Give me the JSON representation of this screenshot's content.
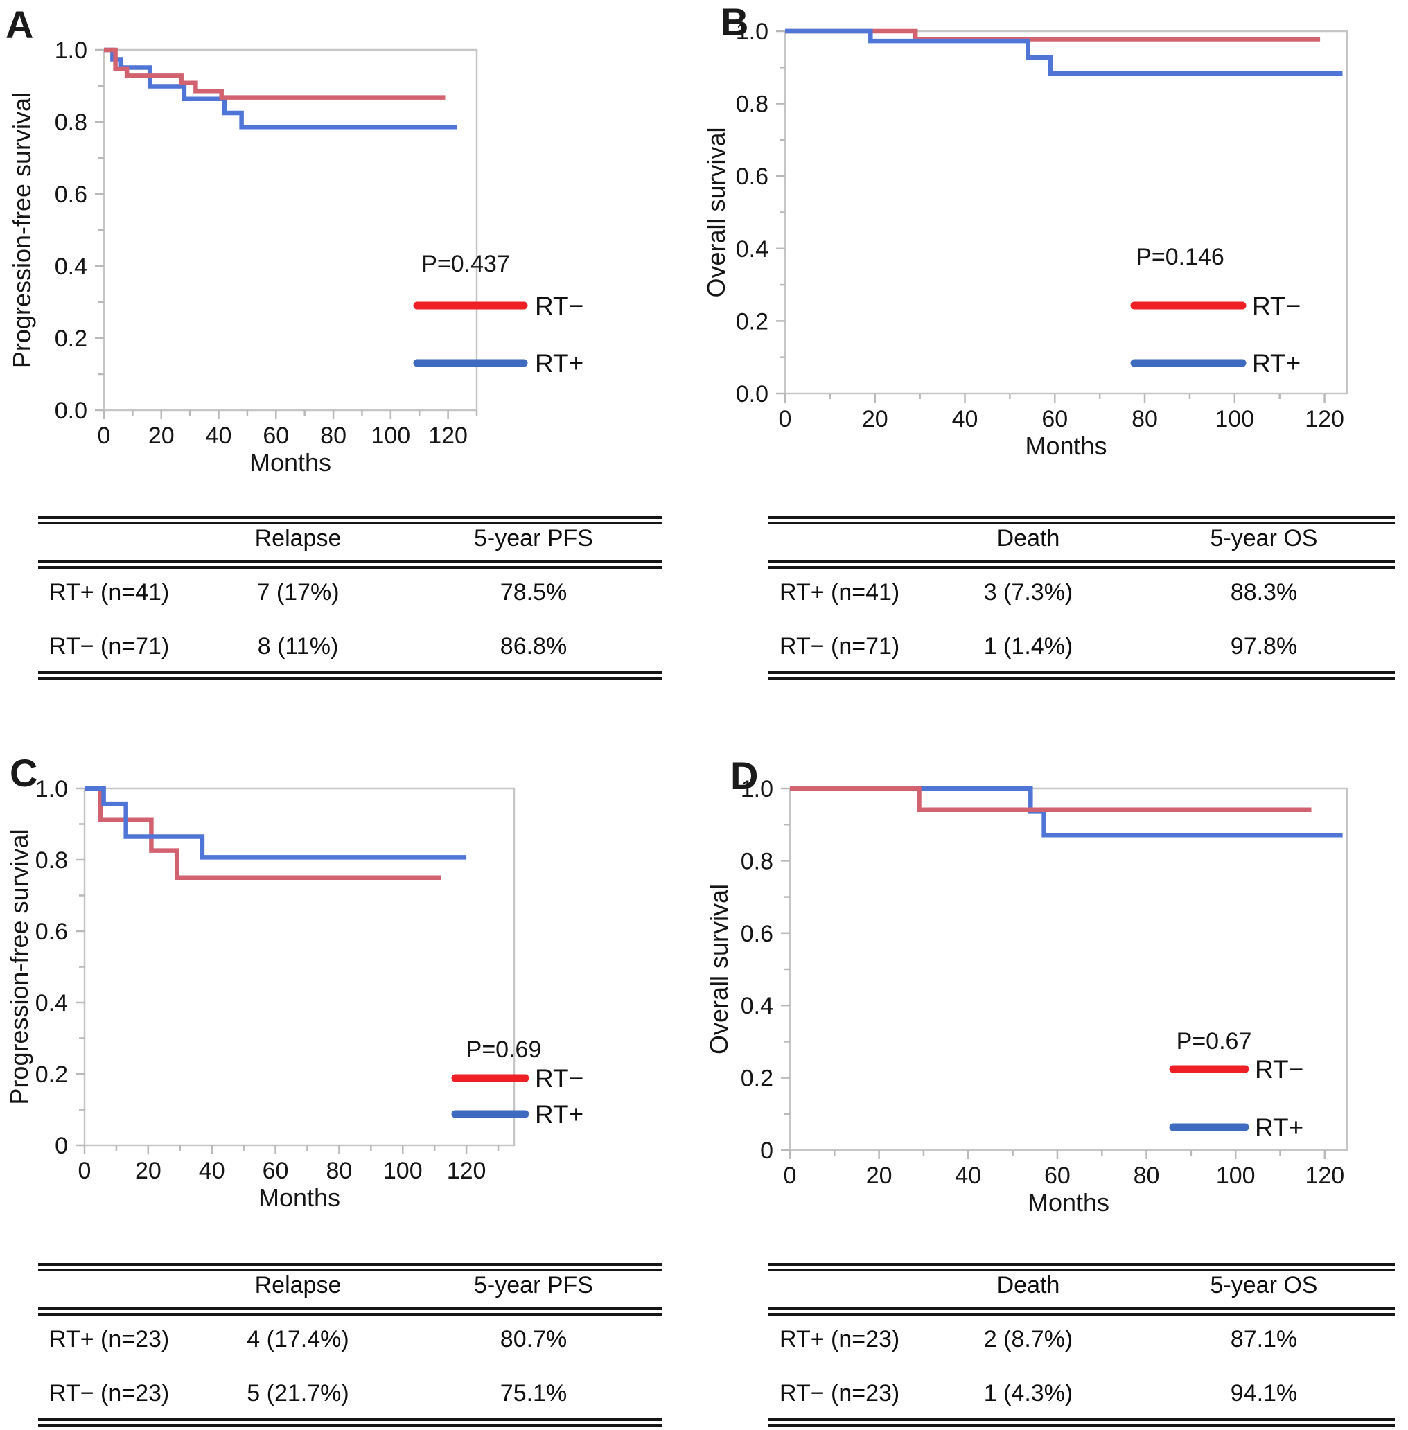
{
  "colors": {
    "curve_red": "#d2626f",
    "curve_blue": "#4f75d6",
    "legend_red": "#ee2026",
    "legend_blue": "#3e6ac0",
    "frame_gray": "#c6c6c6",
    "tick_gray": "#b9b9b9",
    "text_dark": "#151515"
  },
  "panels": [
    {
      "label": "A",
      "table": {
        "headers": [
          "",
          "Relapse",
          "5-year PFS"
        ],
        "rows": [
          [
            "RT+ (n=41)",
            "7 (17%)",
            "78.5%"
          ],
          [
            "RT− (n=71)",
            "8 (11%)",
            "86.8%"
          ]
        ]
      }
    },
    {
      "label": "B",
      "table": {
        "headers": [
          "",
          "Death",
          "5-year OS"
        ],
        "rows": [
          [
            "RT+ (n=41)",
            "3 (7.3%)",
            "88.3%"
          ],
          [
            "RT− (n=71)",
            "1 (1.4%)",
            "97.8%"
          ]
        ]
      }
    },
    {
      "label": "C",
      "table": {
        "headers": [
          "",
          "Relapse",
          "5-year PFS"
        ],
        "rows": [
          [
            "RT+ (n=23)",
            "4 (17.4%)",
            "80.7%"
          ],
          [
            "RT− (n=23)",
            "5 (21.7%)",
            "75.1%"
          ]
        ]
      }
    },
    {
      "label": "D",
      "table": {
        "headers": [
          "",
          "Death",
          "5-year OS"
        ],
        "rows": [
          [
            "RT+ (n=23)",
            "2 (8.7%)",
            "87.1%"
          ],
          [
            "RT− (n=23)",
            "1 (4.3%)",
            "94.1%"
          ]
        ]
      }
    }
  ],
  "chart_data": [
    {
      "id": "A",
      "type": "line",
      "subtype": "kaplan_meier_step",
      "xlabel": "Months",
      "ylabel": "Progression-free survival",
      "xlim": [
        0,
        130
      ],
      "ylim": [
        0,
        1
      ],
      "x_ticks": [
        0,
        20,
        40,
        60,
        80,
        100,
        120
      ],
      "y_tick_labels": [
        "1.0",
        "0.8",
        "0.6",
        "0.4",
        "0.2",
        "0.0"
      ],
      "annotation": "P=0.437",
      "legend": [
        {
          "label": "RT−",
          "color": "#ee2026"
        },
        {
          "label": "RT+",
          "color": "#3e6ac0"
        }
      ],
      "series": [
        {
          "name": "RT+",
          "color": "#4f75d6",
          "points": [
            [
              0,
              1
            ],
            [
              3,
              1
            ],
            [
              3,
              0.974
            ],
            [
              6,
              0.974
            ],
            [
              6,
              0.951
            ],
            [
              16,
              0.951
            ],
            [
              16,
              0.899
            ],
            [
              28,
              0.899
            ],
            [
              28,
              0.864
            ],
            [
              42,
              0.864
            ],
            [
              42,
              0.825
            ],
            [
              48,
              0.825
            ],
            [
              48,
              0.786
            ],
            [
              123,
              0.786
            ]
          ]
        },
        {
          "name": "RT−",
          "color": "#d2626f",
          "points": [
            [
              0,
              1
            ],
            [
              4,
              1
            ],
            [
              4,
              0.948
            ],
            [
              8,
              0.948
            ],
            [
              8,
              0.928
            ],
            [
              27,
              0.928
            ],
            [
              27,
              0.908
            ],
            [
              32,
              0.908
            ],
            [
              32,
              0.886
            ],
            [
              41,
              0.886
            ],
            [
              41,
              0.868
            ],
            [
              119,
              0.868
            ]
          ]
        }
      ]
    },
    {
      "id": "B",
      "type": "line",
      "subtype": "kaplan_meier_step",
      "xlabel": "Months",
      "ylabel": "Overall survival",
      "xlim": [
        0,
        125
      ],
      "ylim": [
        0,
        1
      ],
      "x_ticks": [
        0,
        20,
        40,
        60,
        80,
        100,
        120
      ],
      "y_tick_labels": [
        "1.0",
        "0.8",
        "0.6",
        "0.4",
        "0.2",
        "0.0"
      ],
      "annotation": "P=0.146",
      "legend": [
        {
          "label": "RT−",
          "color": "#ee2026"
        },
        {
          "label": "RT+",
          "color": "#3e6ac0"
        }
      ],
      "series": [
        {
          "name": "RT−",
          "color": "#d2626f",
          "points": [
            [
              0,
              1
            ],
            [
              29,
              1
            ],
            [
              29,
              0.978
            ],
            [
              119,
              0.978
            ]
          ]
        },
        {
          "name": "RT+",
          "color": "#4f75d6",
          "points": [
            [
              0,
              1
            ],
            [
              19,
              1
            ],
            [
              19,
              0.973
            ],
            [
              54,
              0.973
            ],
            [
              54,
              0.928
            ],
            [
              59,
              0.928
            ],
            [
              59,
              0.883
            ],
            [
              124,
              0.883
            ]
          ]
        }
      ]
    },
    {
      "id": "C",
      "type": "line",
      "subtype": "kaplan_meier_step",
      "xlabel": "Months",
      "ylabel": "Progression-free survival",
      "xlim": [
        0,
        135
      ],
      "ylim": [
        0,
        1
      ],
      "x_ticks": [
        0,
        20,
        40,
        60,
        80,
        100,
        120
      ],
      "y_tick_labels": [
        "1.0",
        "0.8",
        "0.6",
        "0.4",
        "0.2",
        "0"
      ],
      "annotation": "P=0.69",
      "legend": [
        {
          "label": "RT−",
          "color": "#ee2026"
        },
        {
          "label": "RT+",
          "color": "#3e6ac0"
        }
      ],
      "series": [
        {
          "name": "RT−",
          "color": "#d2626f",
          "points": [
            [
              0,
              1
            ],
            [
              5,
              1
            ],
            [
              5,
              0.913
            ],
            [
              21,
              0.913
            ],
            [
              21,
              0.826
            ],
            [
              29,
              0.826
            ],
            [
              29,
              0.75
            ],
            [
              112,
              0.75
            ]
          ]
        },
        {
          "name": "RT+",
          "color": "#4f75d6",
          "points": [
            [
              0,
              1
            ],
            [
              6,
              1
            ],
            [
              6,
              0.957
            ],
            [
              13,
              0.957
            ],
            [
              13,
              0.865
            ],
            [
              37,
              0.865
            ],
            [
              37,
              0.807
            ],
            [
              120,
              0.807
            ]
          ]
        }
      ]
    },
    {
      "id": "D",
      "type": "line",
      "subtype": "kaplan_meier_step",
      "xlabel": "Months",
      "ylabel": "Overall survival",
      "xlim": [
        0,
        125
      ],
      "ylim": [
        0,
        1
      ],
      "x_ticks": [
        0,
        20,
        40,
        60,
        80,
        100,
        120
      ],
      "y_tick_labels": [
        "1.0",
        "0.8",
        "0.6",
        "0.4",
        "0.2",
        "0"
      ],
      "annotation": "P=0.67",
      "legend": [
        {
          "label": "RT−",
          "color": "#ee2026"
        },
        {
          "label": "RT+",
          "color": "#3e6ac0"
        }
      ],
      "series": [
        {
          "name": "RT+",
          "color": "#4f75d6",
          "points": [
            [
              0,
              1
            ],
            [
              54,
              1
            ],
            [
              54,
              0.936
            ],
            [
              57,
              0.936
            ],
            [
              57,
              0.871
            ],
            [
              124,
              0.871
            ]
          ]
        },
        {
          "name": "RT−",
          "color": "#d2626f",
          "points": [
            [
              0,
              1
            ],
            [
              29,
              1
            ],
            [
              29,
              0.941
            ],
            [
              117,
              0.941
            ]
          ]
        }
      ]
    }
  ]
}
